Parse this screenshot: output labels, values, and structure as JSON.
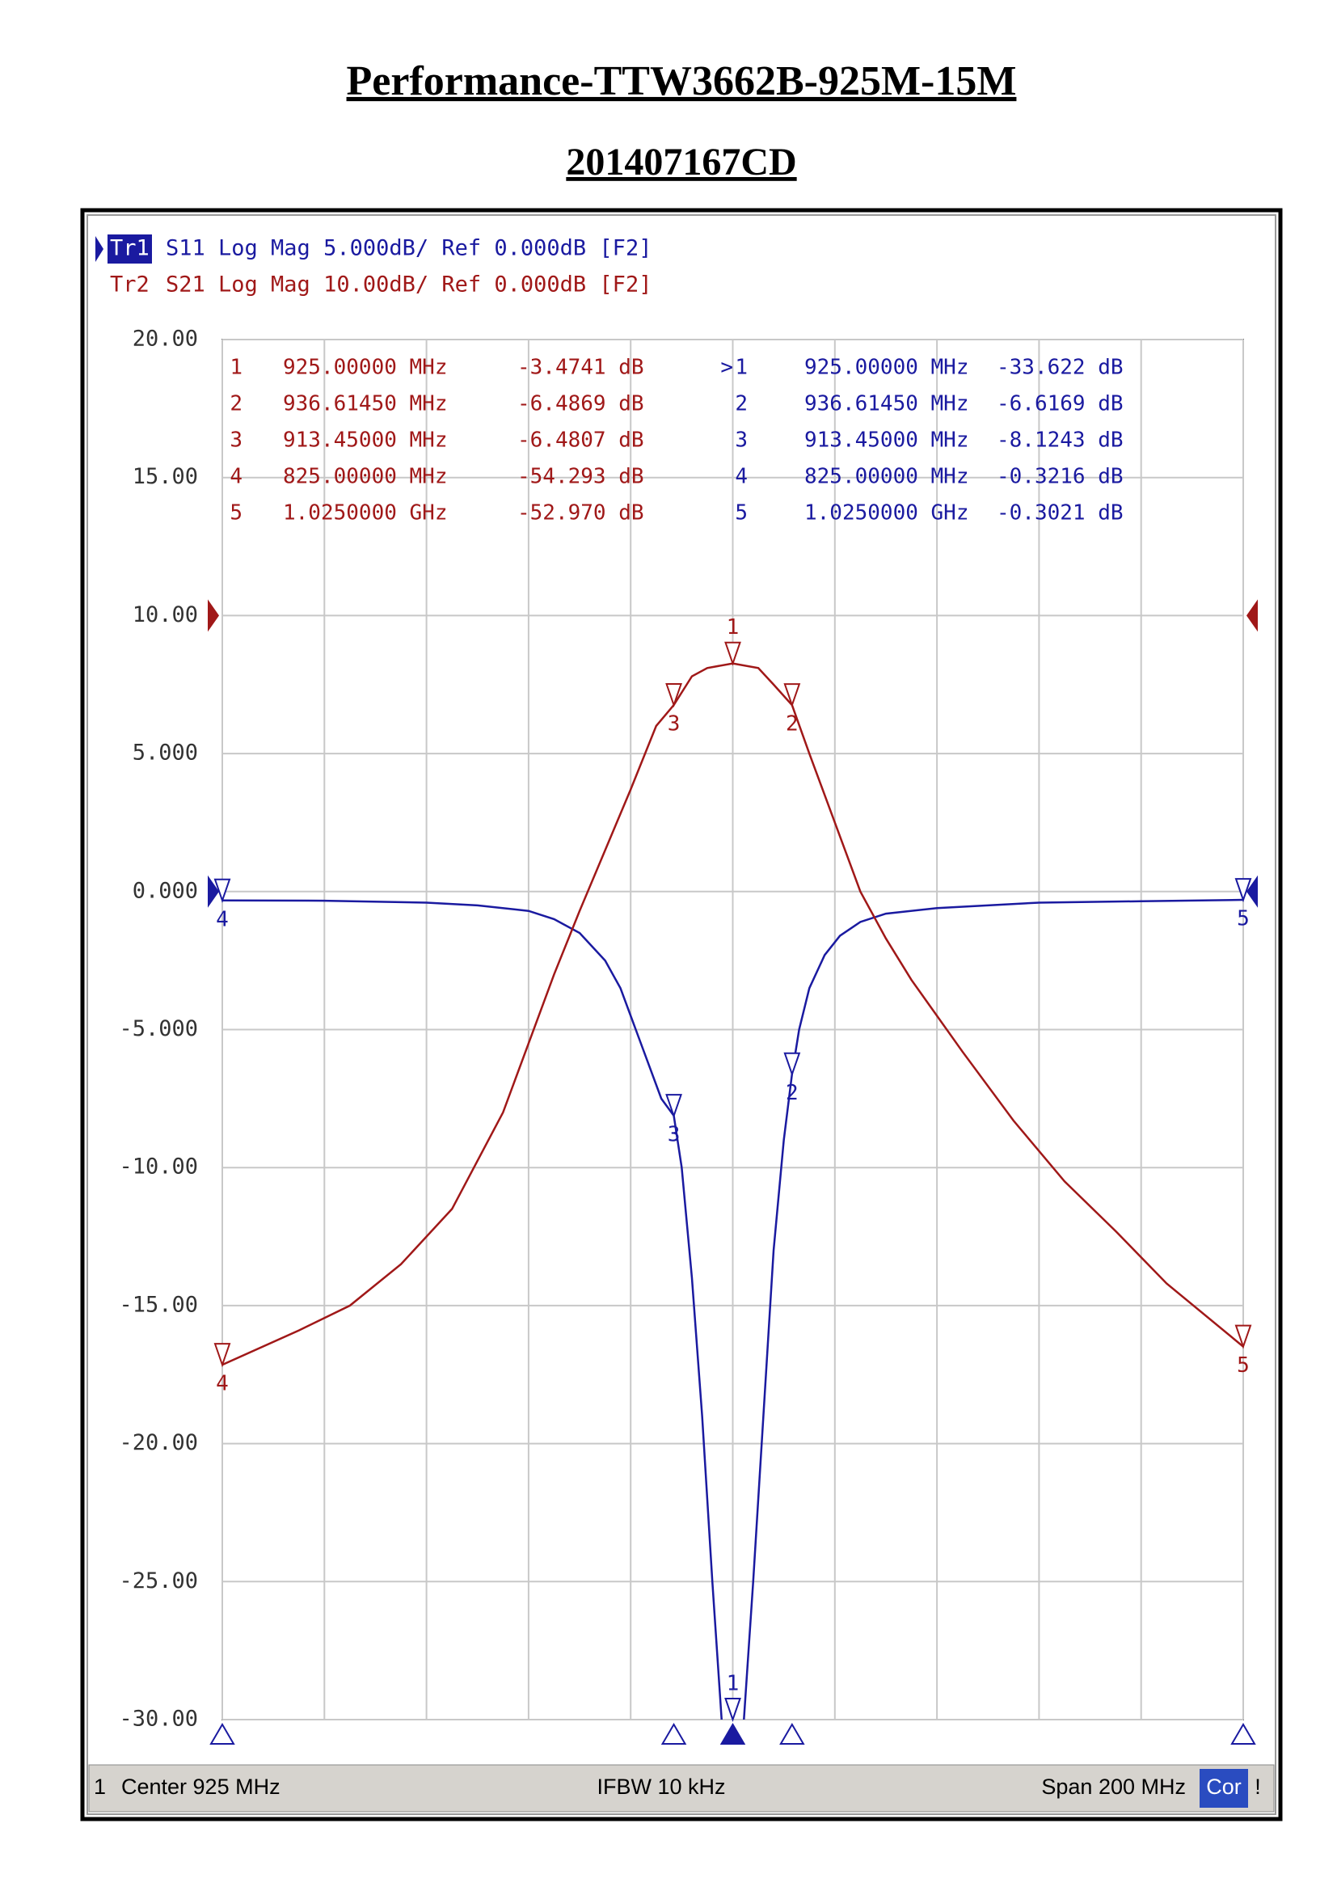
{
  "title": "Performance-TTW3662B-925M-15M",
  "subtitle": "201407167CD",
  "footer": {
    "channel": "1",
    "center": "Center 925 MHz",
    "ifbw": "IFBW 10 kHz",
    "span": "Span 200 MHz",
    "correction": "Cor",
    "status": "!"
  },
  "chart_data": {
    "type": "line",
    "xlim": [
      825,
      1025
    ],
    "xticks": [
      825,
      845,
      865,
      885,
      905,
      925,
      945,
      965,
      985,
      1005,
      1025
    ],
    "ylim": [
      -30,
      20
    ],
    "yticks": [
      {
        "value": 20,
        "label": "20.00"
      },
      {
        "value": 15,
        "label": "15.00"
      },
      {
        "value": 10,
        "label": "10.00"
      },
      {
        "value": 5,
        "label": "5.000"
      },
      {
        "value": 0,
        "label": "0.000"
      },
      {
        "value": -5,
        "label": "-5.000"
      },
      {
        "value": -10,
        "label": "-10.00"
      },
      {
        "value": -15,
        "label": "-15.00"
      },
      {
        "value": -20,
        "label": "-20.00"
      },
      {
        "value": -25,
        "label": "-25.00"
      },
      {
        "value": -30,
        "label": "-30.00"
      }
    ],
    "y2lim": [
      -80,
      20
    ],
    "grid": true,
    "active_symbol": ">",
    "series": [
      {
        "name": "Tr1",
        "measurement": "S11 Log Mag 5.000dB/ Ref 0.000dB [F2]",
        "color": "#1a1aa0",
        "ref": 0,
        "x": [
          825,
          845,
          865,
          875,
          885,
          890,
          895,
          900,
          903,
          906,
          909,
          911,
          913.45,
          915,
          917,
          919,
          921,
          923,
          925,
          927,
          929,
          931,
          933,
          935,
          936.6145,
          938,
          940,
          943,
          946,
          950,
          955,
          965,
          985,
          1005,
          1025
        ],
        "values": [
          -0.32,
          -0.33,
          -0.4,
          -0.5,
          -0.7,
          -1.0,
          -1.5,
          -2.5,
          -3.5,
          -5,
          -6.5,
          -7.5,
          -8.12,
          -10,
          -14,
          -19,
          -25,
          -30.5,
          -33.6,
          -30.5,
          -25,
          -19,
          -13,
          -9,
          -6.6,
          -5,
          -3.5,
          -2.3,
          -1.6,
          -1.1,
          -0.8,
          -0.6,
          -0.4,
          -0.35,
          -0.3
        ],
        "markers": [
          {
            "name": "1",
            "x": 925,
            "y": -33.622,
            "x_label": "925.00000 MHz",
            "y_label": "-33.622 dB"
          },
          {
            "name": "2",
            "x": 936.6145,
            "y": -6.6169,
            "x_label": "936.61450 MHz",
            "y_label": "-6.6169 dB"
          },
          {
            "name": "3",
            "x": 913.45,
            "y": -8.1243,
            "x_label": "913.45000 MHz",
            "y_label": "-8.1243 dB"
          },
          {
            "name": "4",
            "x": 825,
            "y": -0.3216,
            "x_label": "825.00000 MHz",
            "y_label": "-0.3216 dB"
          },
          {
            "name": "5",
            "x": 1025,
            "y": -0.3021,
            "x_label": "1.0250000 GHz",
            "y_label": "-0.3021 dB"
          }
        ]
      },
      {
        "name": "Tr2",
        "measurement": "S21 Log Mag 10.00dB/ Ref 0.000dB [F2]",
        "color": "#a01818",
        "ref": 0,
        "axis": "y2",
        "x": [
          825,
          840,
          850,
          860,
          870,
          880,
          890,
          895,
          900,
          905,
          910,
          913.45,
          917,
          920,
          925,
          930,
          933,
          936.6145,
          940,
          945,
          950,
          955,
          960,
          970,
          980,
          990,
          1000,
          1010,
          1025
        ],
        "values": [
          -54.29,
          -51.8,
          -50,
          -47,
          -43,
          -36,
          -26,
          -21.4,
          -17,
          -12.6,
          -8,
          -6.48,
          -4.4,
          -3.8,
          -3.47,
          -3.8,
          -5,
          -6.49,
          -10,
          -15,
          -20,
          -23.4,
          -26.4,
          -31.6,
          -36.6,
          -41,
          -44.6,
          -48.4,
          -52.97
        ],
        "markers": [
          {
            "name": "1",
            "x": 925,
            "y": -3.4741,
            "x_label": "925.00000 MHz",
            "y_label": "-3.4741 dB"
          },
          {
            "name": "2",
            "x": 936.6145,
            "y": -6.4869,
            "x_label": "936.61450 MHz",
            "y_label": "-6.4869 dB"
          },
          {
            "name": "3",
            "x": 913.45,
            "y": -6.4807,
            "x_label": "913.45000 MHz",
            "y_label": "-6.4807 dB"
          },
          {
            "name": "4",
            "x": 825,
            "y": -54.293,
            "x_label": "825.00000 MHz",
            "y_label": "-54.293 dB"
          },
          {
            "name": "5",
            "x": 1025,
            "y": -52.97,
            "x_label": "1.0250000 GHz",
            "y_label": "-52.970 dB"
          }
        ]
      }
    ]
  }
}
